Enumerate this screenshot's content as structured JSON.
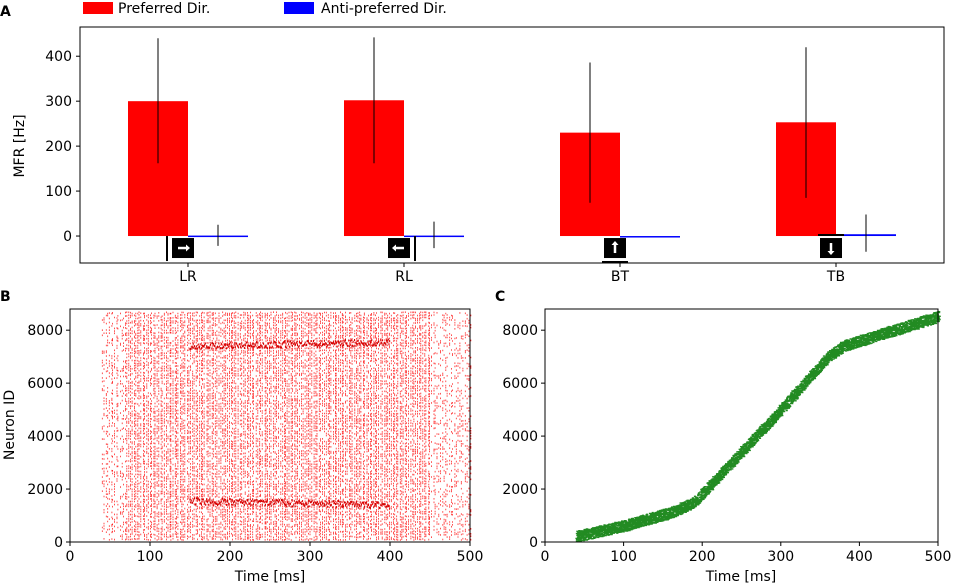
{
  "chart_data": [
    {
      "panel": "A",
      "type": "bar",
      "title": "",
      "xlabel": "",
      "ylabel": "MFR [Hz]",
      "ylim": [
        -60,
        465
      ],
      "yticks": [
        0,
        100,
        200,
        300,
        400
      ],
      "categories": [
        "LR",
        "RL",
        "BT",
        "TB"
      ],
      "direction_icons": [
        "arrow-right",
        "arrow-left",
        "arrow-up",
        "arrow-down"
      ],
      "series": [
        {
          "name": "Preferred Dir.",
          "color": "#ff0000",
          "values": [
            300,
            302,
            230,
            253
          ],
          "err_low": [
            162,
            162,
            74,
            85
          ],
          "err_high": [
            440,
            442,
            386,
            420
          ]
        },
        {
          "name": "Anti-preferred Dir.",
          "color": "#0000ff",
          "values": [
            1,
            1,
            0,
            4
          ],
          "err_low": [
            -22,
            -27,
            0,
            -35
          ],
          "err_high": [
            25,
            32,
            0,
            48
          ]
        }
      ],
      "legend": {
        "placement": "top",
        "entries": [
          "Preferred Dir.",
          "Anti-preferred Dir."
        ]
      }
    },
    {
      "panel": "B",
      "type": "scatter",
      "xlabel": "Time [ms]",
      "ylabel": "Neuron ID",
      "xlim": [
        0,
        500
      ],
      "ylim": [
        0,
        8800
      ],
      "xticks": [
        0,
        100,
        200,
        300,
        400,
        500
      ],
      "yticks": [
        0,
        2000,
        4000,
        6000,
        8000
      ],
      "color": "#ff0000",
      "description": "dense raster of spikes for neurons 0–8700 between ~40 ms and 500 ms",
      "spike_time_range": [
        40,
        500
      ],
      "neuron_range": [
        0,
        8700
      ],
      "dense_bands": [
        {
          "neuron_id": 1500,
          "t_from": 150,
          "t_to": 400
        },
        {
          "neuron_id": 7500,
          "t_from": 150,
          "t_to": 400
        }
      ]
    },
    {
      "panel": "C",
      "type": "scatter",
      "xlabel": "Time [ms]",
      "ylabel": "",
      "xlim": [
        0,
        500
      ],
      "ylim": [
        0,
        8800
      ],
      "xticks": [
        0,
        100,
        200,
        300,
        400,
        500
      ],
      "yticks": [
        0,
        2000,
        4000,
        6000,
        8000
      ],
      "color": "#228b22",
      "description": "diagonal wave of spikes from ~(40 ms, 200) to (500 ms, 8500)",
      "trend": {
        "x": [
          40,
          100,
          160,
          190,
          300,
          360,
          380,
          500
        ],
        "y": [
          200,
          600,
          1100,
          1500,
          5000,
          7000,
          7400,
          8500
        ]
      }
    }
  ],
  "panels": {
    "A": "A",
    "B": "B",
    "C": "C"
  }
}
